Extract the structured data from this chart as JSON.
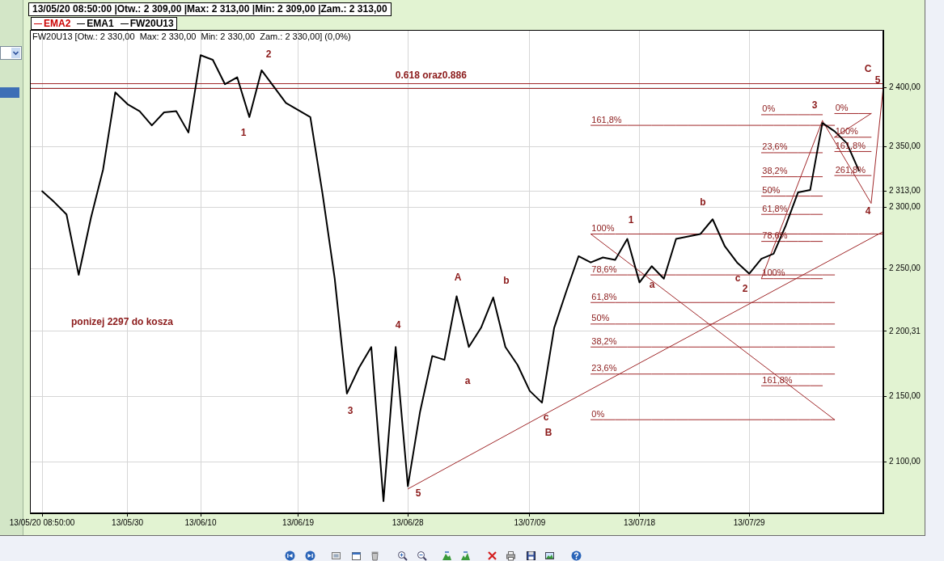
{
  "chart_data": {
    "type": "line",
    "title": "13/05/20 08:50:00 |Otw.: 2 309,00 |Max: 2 313,00 |Min: 2 309,00 |Zam.: 2 313,00",
    "subtitle": "FW20U13 [Otw.: 2 330,00  Max: 2 330,00  Min: 2 330,00  Zam.: 2 330,00] (0,0%)",
    "categories": [
      null,
      "13/05/20 08:50:00",
      null,
      null,
      null,
      null,
      null,
      null,
      "13/05/30",
      null,
      null,
      null,
      null,
      null,
      "13/06/10",
      null,
      null,
      null,
      null,
      null,
      null,
      null,
      "13/06/19",
      null,
      null,
      null,
      null,
      null,
      null,
      null,
      null,
      "13/06/28",
      null,
      null,
      null,
      null,
      null,
      null,
      null,
      null,
      null,
      "13/07/09",
      null,
      null,
      null,
      null,
      null,
      null,
      null,
      null,
      "13/07/18",
      null,
      null,
      null,
      null,
      null,
      null,
      null,
      null,
      "13/07/29",
      null,
      null,
      null,
      null,
      null,
      null,
      null,
      null,
      null,
      null,
      null
    ],
    "series": [
      {
        "name": "EMA2",
        "color": "#cc0000",
        "values": [
          null,
          null,
          null,
          null,
          null,
          null,
          null,
          null,
          null,
          null,
          null,
          null,
          null,
          null,
          null,
          null,
          null,
          null,
          null,
          null,
          null,
          null,
          null,
          null,
          null,
          null,
          null,
          null,
          null,
          null,
          null,
          null,
          null,
          null,
          null,
          null,
          null,
          null,
          null,
          null,
          null,
          null,
          null,
          null,
          null,
          null,
          null,
          null,
          null,
          null,
          null,
          null,
          null,
          null,
          null,
          null,
          null,
          null,
          null,
          null,
          null,
          null,
          null,
          null,
          null,
          null,
          null,
          null,
          null,
          null,
          null
        ]
      },
      {
        "name": "EMA1",
        "color": "#000000",
        "values": [
          null,
          null,
          null,
          null,
          null,
          null,
          null,
          null,
          null,
          null,
          null,
          null,
          null,
          null,
          null,
          null,
          null,
          null,
          null,
          null,
          null,
          null,
          null,
          null,
          null,
          null,
          null,
          null,
          null,
          null,
          null,
          null,
          null,
          null,
          null,
          null,
          null,
          null,
          null,
          null,
          null,
          null,
          null,
          null,
          null,
          null,
          null,
          null,
          null,
          null,
          null,
          null,
          null,
          null,
          null,
          null,
          null,
          null,
          null,
          null,
          null,
          null,
          null,
          null,
          null,
          null,
          null,
          null,
          null,
          null,
          null
        ]
      },
      {
        "name": "FW20U13",
        "color": "#000000",
        "values": [
          null,
          2313,
          2304,
          2294,
          2245,
          2291,
          2331,
          2396,
          2386,
          2380,
          2368,
          2379,
          2380,
          2362,
          2428,
          2424,
          2403,
          2409,
          2375,
          2415,
          2401,
          2387,
          2381,
          2375,
          2311,
          2242,
          2152,
          2172,
          2188,
          2071,
          2188,
          2082,
          2138,
          2181,
          2178,
          2228,
          2188,
          2203,
          2227,
          2188,
          2174,
          2154,
          2145,
          2203,
          2232,
          2260,
          2255,
          2259,
          2257,
          2274,
          2239,
          2252,
          2242,
          2274,
          2276,
          2278,
          2290,
          2268,
          2255,
          2246,
          2258,
          2262,
          2285,
          2312,
          2314,
          2370,
          2363,
          2353,
          2330,
          null,
          null
        ]
      },
      {
        "color": "#a0282a",
        "values": [
          null,
          null,
          null,
          null,
          null,
          null,
          null,
          null,
          null,
          null,
          null,
          null,
          null,
          null,
          null,
          null,
          null,
          null,
          null,
          null,
          null,
          null,
          null,
          null,
          null,
          null,
          null,
          null,
          null,
          null,
          null,
          null,
          null,
          null,
          null,
          null,
          null,
          null,
          null,
          null,
          null,
          null,
          null,
          null,
          null,
          null,
          2368,
          2368,
          2368,
          2368,
          2368,
          2368,
          2368,
          2368,
          2368,
          2368,
          2368,
          2368,
          2368,
          2368,
          2368,
          2368,
          2368,
          2368,
          2368,
          2368,
          2368,
          null,
          null,
          null,
          null
        ]
      },
      {
        "color": "#a0282a",
        "values": [
          null,
          null,
          null,
          null,
          null,
          null,
          null,
          null,
          null,
          null,
          null,
          null,
          null,
          null,
          null,
          null,
          null,
          null,
          null,
          null,
          null,
          null,
          null,
          null,
          null,
          null,
          null,
          null,
          null,
          null,
          null,
          null,
          null,
          null,
          null,
          null,
          null,
          null,
          null,
          null,
          null,
          null,
          null,
          null,
          null,
          null,
          2278,
          2278,
          2278,
          2278,
          2278,
          2278,
          2278,
          2278,
          2278,
          2278,
          2278,
          2278,
          2278,
          2278,
          2278,
          2278,
          2278,
          2278,
          2278,
          2278,
          2278,
          null,
          null,
          null,
          null
        ]
      },
      {
        "color": "#a0282a",
        "values": [
          null,
          null,
          null,
          null,
          null,
          null,
          null,
          null,
          null,
          null,
          null,
          null,
          null,
          null,
          null,
          null,
          null,
          null,
          null,
          null,
          null,
          null,
          null,
          null,
          null,
          null,
          null,
          null,
          null,
          null,
          null,
          null,
          null,
          null,
          null,
          null,
          null,
          null,
          null,
          null,
          null,
          null,
          null,
          null,
          null,
          null,
          2245,
          2245,
          2245,
          2245,
          2245,
          2245,
          2245,
          2245,
          2245,
          2245,
          2245,
          2245,
          2245,
          2245,
          2245,
          2245,
          2245,
          2245,
          2245,
          2245,
          2245,
          null,
          null,
          null,
          null
        ]
      },
      {
        "color": "#a0282a",
        "values": [
          null,
          null,
          null,
          null,
          null,
          null,
          null,
          null,
          null,
          null,
          null,
          null,
          null,
          null,
          null,
          null,
          null,
          null,
          null,
          null,
          null,
          null,
          null,
          null,
          null,
          null,
          null,
          null,
          null,
          null,
          null,
          null,
          null,
          null,
          null,
          null,
          null,
          null,
          null,
          null,
          null,
          null,
          null,
          null,
          null,
          null,
          2223,
          2223,
          2223,
          2223,
          2223,
          2223,
          2223,
          2223,
          2223,
          2223,
          2223,
          2223,
          2223,
          2223,
          2223,
          2223,
          2223,
          2223,
          2223,
          2223,
          2223,
          null,
          null,
          null,
          null
        ]
      },
      {
        "color": "#a0282a",
        "values": [
          null,
          null,
          null,
          null,
          null,
          null,
          null,
          null,
          null,
          null,
          null,
          null,
          null,
          null,
          null,
          null,
          null,
          null,
          null,
          null,
          null,
          null,
          null,
          null,
          null,
          null,
          null,
          null,
          null,
          null,
          null,
          null,
          null,
          null,
          null,
          null,
          null,
          null,
          null,
          null,
          null,
          null,
          null,
          null,
          null,
          null,
          2206,
          2206,
          2206,
          2206,
          2206,
          2206,
          2206,
          2206,
          2206,
          2206,
          2206,
          2206,
          2206,
          2206,
          2206,
          2206,
          2206,
          2206,
          2206,
          2206,
          2206,
          null,
          null,
          null,
          null
        ]
      },
      {
        "color": "#a0282a",
        "values": [
          null,
          null,
          null,
          null,
          null,
          null,
          null,
          null,
          null,
          null,
          null,
          null,
          null,
          null,
          null,
          null,
          null,
          null,
          null,
          null,
          null,
          null,
          null,
          null,
          null,
          null,
          null,
          null,
          null,
          null,
          null,
          null,
          null,
          null,
          null,
          null,
          null,
          null,
          null,
          null,
          null,
          null,
          null,
          null,
          null,
          null,
          2188,
          2188,
          2188,
          2188,
          2188,
          2188,
          2188,
          2188,
          2188,
          2188,
          2188,
          2188,
          2188,
          2188,
          2188,
          2188,
          2188,
          2188,
          2188,
          2188,
          2188,
          null,
          null,
          null,
          null
        ]
      },
      {
        "color": "#a0282a",
        "values": [
          null,
          null,
          null,
          null,
          null,
          null,
          null,
          null,
          null,
          null,
          null,
          null,
          null,
          null,
          null,
          null,
          null,
          null,
          null,
          null,
          null,
          null,
          null,
          null,
          null,
          null,
          null,
          null,
          null,
          null,
          null,
          null,
          null,
          null,
          null,
          null,
          null,
          null,
          null,
          null,
          null,
          null,
          null,
          null,
          null,
          null,
          2167,
          2167,
          2167,
          2167,
          2167,
          2167,
          2167,
          2167,
          2167,
          2167,
          2167,
          2167,
          2167,
          2167,
          2167,
          2167,
          2167,
          2167,
          2167,
          2167,
          2167,
          null,
          null,
          null,
          null
        ]
      },
      {
        "color": "#a0282a",
        "values": [
          null,
          null,
          null,
          null,
          null,
          null,
          null,
          null,
          null,
          null,
          null,
          null,
          null,
          null,
          null,
          null,
          null,
          null,
          null,
          null,
          null,
          null,
          null,
          null,
          null,
          null,
          null,
          null,
          null,
          null,
          null,
          null,
          null,
          null,
          null,
          null,
          null,
          null,
          null,
          null,
          null,
          null,
          null,
          null,
          null,
          null,
          2132,
          2132,
          2132,
          2132,
          2132,
          2132,
          2132,
          2132,
          2132,
          2132,
          2132,
          2132,
          2132,
          2132,
          2132,
          2132,
          2132,
          2132,
          2132,
          2132,
          2132,
          null,
          null,
          null,
          null
        ]
      },
      {
        "color": "#a0282a",
        "values": [
          null,
          null,
          null,
          null,
          null,
          null,
          null,
          null,
          null,
          null,
          null,
          null,
          null,
          null,
          null,
          null,
          null,
          null,
          null,
          null,
          null,
          null,
          null,
          null,
          null,
          null,
          null,
          null,
          null,
          null,
          null,
          null,
          null,
          null,
          null,
          null,
          null,
          null,
          null,
          null,
          null,
          null,
          null,
          null,
          null,
          null,
          null,
          null,
          null,
          null,
          null,
          null,
          null,
          null,
          null,
          null,
          null,
          null,
          null,
          null,
          2377,
          2377,
          2377,
          2377,
          2377,
          2377,
          null,
          null,
          null,
          null,
          null
        ]
      },
      {
        "color": "#a0282a",
        "values": [
          null,
          null,
          null,
          null,
          null,
          null,
          null,
          null,
          null,
          null,
          null,
          null,
          null,
          null,
          null,
          null,
          null,
          null,
          null,
          null,
          null,
          null,
          null,
          null,
          null,
          null,
          null,
          null,
          null,
          null,
          null,
          null,
          null,
          null,
          null,
          null,
          null,
          null,
          null,
          null,
          null,
          null,
          null,
          null,
          null,
          null,
          null,
          null,
          null,
          null,
          null,
          null,
          null,
          null,
          null,
          null,
          null,
          null,
          null,
          null,
          2345,
          2345,
          2345,
          2345,
          2345,
          2345,
          null,
          null,
          null,
          null,
          null
        ]
      },
      {
        "color": "#a0282a",
        "values": [
          null,
          null,
          null,
          null,
          null,
          null,
          null,
          null,
          null,
          null,
          null,
          null,
          null,
          null,
          null,
          null,
          null,
          null,
          null,
          null,
          null,
          null,
          null,
          null,
          null,
          null,
          null,
          null,
          null,
          null,
          null,
          null,
          null,
          null,
          null,
          null,
          null,
          null,
          null,
          null,
          null,
          null,
          null,
          null,
          null,
          null,
          null,
          null,
          null,
          null,
          null,
          null,
          null,
          null,
          null,
          null,
          null,
          null,
          null,
          null,
          2325,
          2325,
          2325,
          2325,
          2325,
          2325,
          null,
          null,
          null,
          null,
          null
        ]
      },
      {
        "color": "#a0282a",
        "values": [
          null,
          null,
          null,
          null,
          null,
          null,
          null,
          null,
          null,
          null,
          null,
          null,
          null,
          null,
          null,
          null,
          null,
          null,
          null,
          null,
          null,
          null,
          null,
          null,
          null,
          null,
          null,
          null,
          null,
          null,
          null,
          null,
          null,
          null,
          null,
          null,
          null,
          null,
          null,
          null,
          null,
          null,
          null,
          null,
          null,
          null,
          null,
          null,
          null,
          null,
          null,
          null,
          null,
          null,
          null,
          null,
          null,
          null,
          null,
          null,
          2309,
          2309,
          2309,
          2309,
          2309,
          2309,
          null,
          null,
          null,
          null,
          null
        ]
      },
      {
        "color": "#a0282a",
        "values": [
          null,
          null,
          null,
          null,
          null,
          null,
          null,
          null,
          null,
          null,
          null,
          null,
          null,
          null,
          null,
          null,
          null,
          null,
          null,
          null,
          null,
          null,
          null,
          null,
          null,
          null,
          null,
          null,
          null,
          null,
          null,
          null,
          null,
          null,
          null,
          null,
          null,
          null,
          null,
          null,
          null,
          null,
          null,
          null,
          null,
          null,
          null,
          null,
          null,
          null,
          null,
          null,
          null,
          null,
          null,
          null,
          null,
          null,
          null,
          null,
          2294,
          2294,
          2294,
          2294,
          2294,
          2294,
          null,
          null,
          null,
          null,
          null
        ]
      },
      {
        "color": "#a0282a",
        "values": [
          null,
          null,
          null,
          null,
          null,
          null,
          null,
          null,
          null,
          null,
          null,
          null,
          null,
          null,
          null,
          null,
          null,
          null,
          null,
          null,
          null,
          null,
          null,
          null,
          null,
          null,
          null,
          null,
          null,
          null,
          null,
          null,
          null,
          null,
          null,
          null,
          null,
          null,
          null,
          null,
          null,
          null,
          null,
          null,
          null,
          null,
          null,
          null,
          null,
          null,
          null,
          null,
          null,
          null,
          null,
          null,
          null,
          null,
          null,
          null,
          2272,
          2272,
          2272,
          2272,
          2272,
          2272,
          null,
          null,
          null,
          null,
          null
        ]
      },
      {
        "color": "#a0282a",
        "values": [
          null,
          null,
          null,
          null,
          null,
          null,
          null,
          null,
          null,
          null,
          null,
          null,
          null,
          null,
          null,
          null,
          null,
          null,
          null,
          null,
          null,
          null,
          null,
          null,
          null,
          null,
          null,
          null,
          null,
          null,
          null,
          null,
          null,
          null,
          null,
          null,
          null,
          null,
          null,
          null,
          null,
          null,
          null,
          null,
          null,
          null,
          null,
          null,
          null,
          null,
          null,
          null,
          null,
          null,
          null,
          null,
          null,
          null,
          null,
          null,
          2242,
          2242,
          2242,
          2242,
          2242,
          2242,
          null,
          null,
          null,
          null,
          null
        ]
      },
      {
        "color": "#a0282a",
        "values": [
          null,
          null,
          null,
          null,
          null,
          null,
          null,
          null,
          null,
          null,
          null,
          null,
          null,
          null,
          null,
          null,
          null,
          null,
          null,
          null,
          null,
          null,
          null,
          null,
          null,
          null,
          null,
          null,
          null,
          null,
          null,
          null,
          null,
          null,
          null,
          null,
          null,
          null,
          null,
          null,
          null,
          null,
          null,
          null,
          null,
          null,
          null,
          null,
          null,
          null,
          null,
          null,
          null,
          null,
          null,
          null,
          null,
          null,
          null,
          null,
          2158,
          2158,
          2158,
          2158,
          2158,
          2158,
          null,
          null,
          null,
          null,
          null
        ]
      },
      {
        "color": "#a0282a",
        "values": [
          null,
          null,
          null,
          null,
          null,
          null,
          null,
          null,
          null,
          null,
          null,
          null,
          null,
          null,
          null,
          null,
          null,
          null,
          null,
          null,
          null,
          null,
          null,
          null,
          null,
          null,
          null,
          null,
          null,
          null,
          null,
          null,
          null,
          null,
          null,
          null,
          null,
          null,
          null,
          null,
          null,
          null,
          null,
          null,
          null,
          null,
          null,
          null,
          null,
          null,
          null,
          null,
          null,
          null,
          null,
          null,
          null,
          null,
          null,
          null,
          null,
          null,
          null,
          null,
          null,
          null,
          2378,
          2378,
          2378,
          2378,
          null
        ]
      },
      {
        "color": "#a0282a",
        "values": [
          null,
          null,
          null,
          null,
          null,
          null,
          null,
          null,
          null,
          null,
          null,
          null,
          null,
          null,
          null,
          null,
          null,
          null,
          null,
          null,
          null,
          null,
          null,
          null,
          null,
          null,
          null,
          null,
          null,
          null,
          null,
          null,
          null,
          null,
          null,
          null,
          null,
          null,
          null,
          null,
          null,
          null,
          null,
          null,
          null,
          null,
          null,
          null,
          null,
          null,
          null,
          null,
          null,
          null,
          null,
          null,
          null,
          null,
          null,
          null,
          null,
          null,
          null,
          null,
          null,
          null,
          2358,
          2358,
          2358,
          2358,
          null
        ]
      },
      {
        "color": "#a0282a",
        "values": [
          null,
          null,
          null,
          null,
          null,
          null,
          null,
          null,
          null,
          null,
          null,
          null,
          null,
          null,
          null,
          null,
          null,
          null,
          null,
          null,
          null,
          null,
          null,
          null,
          null,
          null,
          null,
          null,
          null,
          null,
          null,
          null,
          null,
          null,
          null,
          null,
          null,
          null,
          null,
          null,
          null,
          null,
          null,
          null,
          null,
          null,
          null,
          null,
          null,
          null,
          null,
          null,
          null,
          null,
          null,
          null,
          null,
          null,
          null,
          null,
          null,
          null,
          null,
          null,
          null,
          null,
          2346,
          2346,
          2346,
          2346,
          null
        ]
      },
      {
        "color": "#a0282a",
        "values": [
          null,
          null,
          null,
          null,
          null,
          null,
          null,
          null,
          null,
          null,
          null,
          null,
          null,
          null,
          null,
          null,
          null,
          null,
          null,
          null,
          null,
          null,
          null,
          null,
          null,
          null,
          null,
          null,
          null,
          null,
          null,
          null,
          null,
          null,
          null,
          null,
          null,
          null,
          null,
          null,
          null,
          null,
          null,
          null,
          null,
          null,
          null,
          null,
          null,
          null,
          null,
          null,
          null,
          null,
          null,
          null,
          null,
          null,
          null,
          null,
          null,
          null,
          null,
          null,
          null,
          null,
          2326,
          2326,
          2326,
          2326,
          null
        ]
      },
      {
        "color": "#a0282a",
        "values": [
          null,
          null,
          null,
          null,
          null,
          null,
          null,
          null,
          null,
          null,
          null,
          null,
          null,
          null,
          null,
          null,
          null,
          null,
          null,
          null,
          null,
          null,
          null,
          null,
          null,
          null,
          null,
          null,
          null,
          null,
          null,
          null,
          null,
          null,
          null,
          null,
          null,
          null,
          null,
          null,
          null,
          null,
          null,
          null,
          null,
          null,
          null,
          null,
          null,
          null,
          2278,
          2278,
          2278,
          2278,
          2278,
          2278,
          2278,
          2278,
          2278,
          2278,
          2278,
          2278,
          2278,
          2278,
          2278,
          2278,
          2278,
          2278,
          2278,
          2278,
          2278
        ]
      },
      {
        "color": "#a0282a",
        "values": [
          null,
          null,
          null,
          null,
          null,
          null,
          null,
          null,
          null,
          null,
          null,
          null,
          null,
          null,
          null,
          null,
          null,
          null,
          null,
          null,
          null,
          null,
          null,
          null,
          null,
          null,
          null,
          null,
          null,
          null,
          null,
          null,
          null,
          null,
          null,
          null,
          null,
          null,
          null,
          null,
          null,
          null,
          null,
          null,
          null,
          null,
          2278,
          null,
          null,
          null,
          null,
          null,
          null,
          null,
          null,
          null,
          null,
          null,
          null,
          null,
          null,
          null,
          null,
          null,
          null,
          null,
          2132,
          null,
          null,
          null,
          null
        ]
      },
      {
        "color": "#a0282a",
        "values": [
          null,
          null,
          null,
          null,
          null,
          null,
          null,
          null,
          null,
          null,
          null,
          null,
          null,
          null,
          null,
          null,
          null,
          null,
          null,
          null,
          null,
          null,
          null,
          null,
          null,
          null,
          null,
          null,
          null,
          null,
          null,
          null,
          null,
          null,
          null,
          null,
          null,
          null,
          null,
          null,
          null,
          null,
          null,
          null,
          null,
          null,
          null,
          null,
          null,
          null,
          null,
          null,
          null,
          null,
          null,
          null,
          null,
          null,
          null,
          null,
          2242,
          null,
          null,
          null,
          null,
          2372,
          null,
          null,
          null,
          null,
          null
        ]
      },
      {
        "color": "#a0282a",
        "values": [
          null,
          null,
          null,
          null,
          null,
          null,
          null,
          null,
          null,
          null,
          null,
          null,
          null,
          null,
          null,
          null,
          null,
          null,
          null,
          null,
          null,
          null,
          null,
          null,
          null,
          null,
          null,
          null,
          null,
          null,
          null,
          null,
          null,
          null,
          null,
          null,
          null,
          null,
          null,
          null,
          null,
          null,
          null,
          null,
          null,
          null,
          null,
          null,
          null,
          null,
          null,
          null,
          null,
          null,
          null,
          null,
          null,
          null,
          null,
          null,
          null,
          null,
          null,
          null,
          null,
          2372,
          null,
          null,
          null,
          2303,
          2401
        ]
      },
      {
        "color": "#a0282a",
        "values": [
          null,
          null,
          null,
          null,
          null,
          null,
          null,
          null,
          null,
          null,
          null,
          null,
          null,
          null,
          null,
          null,
          null,
          null,
          null,
          null,
          null,
          null,
          null,
          null,
          null,
          null,
          null,
          null,
          null,
          null,
          null,
          null,
          null,
          null,
          null,
          null,
          null,
          null,
          null,
          null,
          null,
          null,
          null,
          null,
          null,
          null,
          null,
          null,
          null,
          null,
          null,
          null,
          null,
          null,
          null,
          null,
          null,
          null,
          null,
          null,
          null,
          null,
          null,
          null,
          null,
          null,
          2358,
          null,
          null,
          2378,
          null
        ]
      },
      {
        "color": "#a0282a",
        "values": [
          null,
          null,
          null,
          null,
          null,
          null,
          null,
          null,
          null,
          null,
          null,
          null,
          null,
          null,
          null,
          null,
          null,
          null,
          null,
          null,
          null,
          null,
          null,
          null,
          null,
          null,
          null,
          null,
          null,
          null,
          null,
          2080,
          null,
          null,
          null,
          null,
          null,
          null,
          null,
          null,
          null,
          null,
          2135,
          null,
          null,
          null,
          null,
          null,
          null,
          null,
          null,
          null,
          null,
          null,
          null,
          null,
          null,
          null,
          null,
          null,
          null,
          null,
          null,
          null,
          null,
          null,
          null,
          null,
          null,
          null,
          2280
        ]
      }
    ],
    "ylim": [
      2062,
      2450
    ],
    "yticks": [
      {
        "value": 2100,
        "label": "2 100,00"
      },
      {
        "value": 2150,
        "label": "2 150,00"
      },
      {
        "value": 2200.31,
        "label": "2 200,31"
      },
      {
        "value": 2250,
        "label": "2 250,00"
      },
      {
        "value": 2300,
        "label": "2 300,00"
      },
      {
        "value": 2313,
        "label": "2 313,00"
      },
      {
        "value": 2350,
        "label": "2 350,00"
      },
      {
        "value": 2400,
        "label": "2 400,00"
      }
    ],
    "log": "y",
    "grid": true,
    "legend": "top left",
    "ref_lines": [
      {
        "axis": "y",
        "value": 2404,
        "label": "0.618 oraz0.886",
        "color": "#a0282a"
      },
      {
        "axis": "y",
        "value": 2400,
        "color": "#a0282a"
      }
    ],
    "annotations": [
      "ponizej 2297 do kosza",
      "1",
      "2",
      "3",
      "4",
      "5",
      "A",
      "a",
      "b",
      "c",
      "B",
      "1",
      "a",
      "b",
      "c",
      "2",
      "3",
      "4",
      "C",
      "5",
      {
        "text": "161,8%",
        "y": 2368
      },
      {
        "text": "100%",
        "y": 2278
      },
      {
        "text": "78,6%",
        "y": 2245
      },
      {
        "text": "61,8%",
        "y": 2223
      },
      {
        "text": "50%",
        "y": 2206
      },
      {
        "text": "38,2%",
        "y": 2188
      },
      {
        "text": "23,6%",
        "y": 2167
      },
      {
        "text": "0%",
        "y": 2132
      },
      {
        "text": "0%",
        "y": 2377
      },
      {
        "text": "23,6%",
        "y": 2345
      },
      {
        "text": "38,2%",
        "y": 2325
      },
      {
        "text": "50%",
        "y": 2309
      },
      {
        "text": "61,8%",
        "y": 2294
      },
      {
        "text": "78,6%",
        "y": 2272
      },
      {
        "text": "100%",
        "y": 2242
      },
      {
        "text": "161,8%",
        "y": 2158
      },
      {
        "text": "0%",
        "y": 2378
      },
      {
        "text": "100%",
        "y": 2358
      },
      {
        "text": "161,8%",
        "y": 2346
      },
      {
        "text": "261,8%",
        "y": 2326
      }
    ]
  }
}
